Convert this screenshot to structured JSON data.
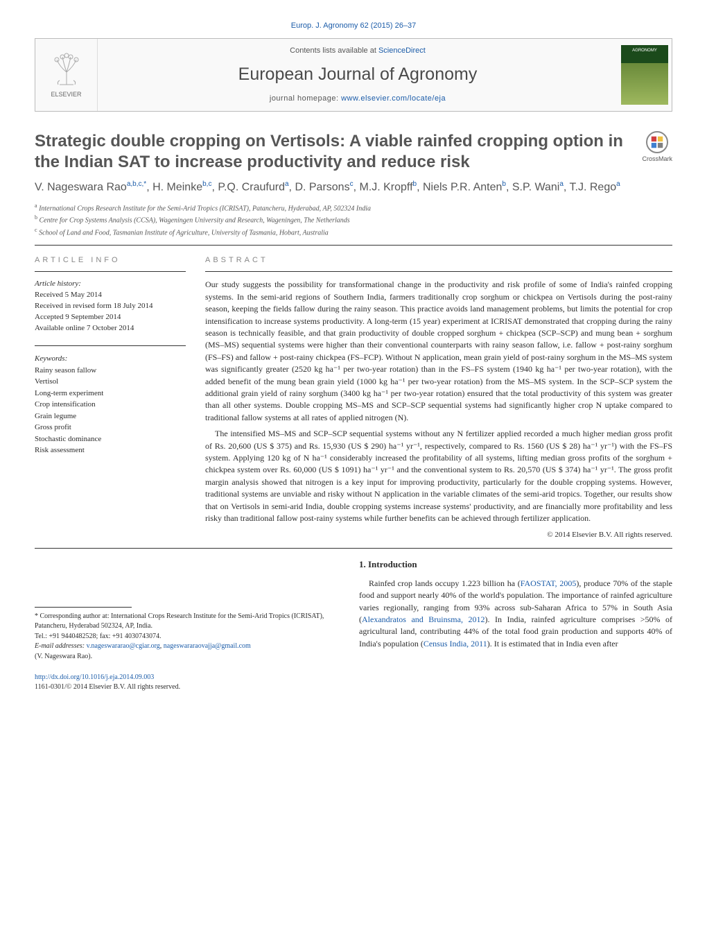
{
  "header": {
    "journal_ref_prefix": "Europ. J. Agronomy 62 (2015) 26–37",
    "contents_line": "Contents lists available at ",
    "contents_link": "ScienceDirect",
    "journal_title": "European Journal of Agronomy",
    "homepage_prefix": "journal homepage: ",
    "homepage_url": "www.elsevier.com/locate/eja",
    "elsevier_label": "ELSEVIER",
    "cover_label": "AGRONOMY"
  },
  "crossmark": {
    "label": "CrossMark"
  },
  "title": "Strategic double cropping on Vertisols: A viable rainfed cropping option in the Indian SAT to increase productivity and reduce risk",
  "authors_html": "V. Nageswara Rao",
  "authors": [
    {
      "name": "V. Nageswara Rao",
      "marks": "a,b,c,*"
    },
    {
      "name": "H. Meinke",
      "marks": "b,c"
    },
    {
      "name": "P.Q. Craufurd",
      "marks": "a"
    },
    {
      "name": "D. Parsons",
      "marks": "c"
    },
    {
      "name": "M.J. Kropff",
      "marks": "b"
    },
    {
      "name": "Niels P.R. Anten",
      "marks": "b"
    },
    {
      "name": "S.P. Wani",
      "marks": "a"
    },
    {
      "name": "T.J. Rego",
      "marks": "a"
    }
  ],
  "affiliations": [
    {
      "mark": "a",
      "text": "International Crops Research Institute for the Semi-Arid Tropics (ICRISAT), Patancheru, Hyderabad, AP, 502324 India"
    },
    {
      "mark": "b",
      "text": "Centre for Crop Systems Analysis (CCSA), Wageningen University and Research, Wageningen, The Netherlands"
    },
    {
      "mark": "c",
      "text": "School of Land and Food, Tasmanian Institute of Agriculture, University of Tasmania, Hobart, Australia"
    }
  ],
  "article_info": {
    "heading": "ARTICLE INFO",
    "history_label": "Article history:",
    "history": [
      "Received 5 May 2014",
      "Received in revised form 18 July 2014",
      "Accepted 9 September 2014",
      "Available online 7 October 2014"
    ],
    "keywords_label": "Keywords:",
    "keywords": [
      "Rainy season fallow",
      "Vertisol",
      "Long-term experiment",
      "Crop intensification",
      "Grain legume",
      "Gross profit",
      "Stochastic dominance",
      "Risk assessment"
    ]
  },
  "abstract": {
    "heading": "ABSTRACT",
    "paragraphs": [
      "Our study suggests the possibility for transformational change in the productivity and risk profile of some of India's rainfed cropping systems. In the semi-arid regions of Southern India, farmers traditionally crop sorghum or chickpea on Vertisols during the post-rainy season, keeping the fields fallow during the rainy season. This practice avoids land management problems, but limits the potential for crop intensification to increase systems productivity. A long-term (15 year) experiment at ICRISAT demonstrated that cropping during the rainy season is technically feasible, and that grain productivity of double cropped sorghum + chickpea (SCP–SCP) and mung bean + sorghum (MS–MS) sequential systems were higher than their conventional counterparts with rainy season fallow, i.e. fallow + post-rainy sorghum (FS–FS) and fallow + post-rainy chickpea (FS–FCP). Without N application, mean grain yield of post-rainy sorghum in the MS–MS system was significantly greater (2520 kg ha⁻¹ per two-year rotation) than in the FS–FS system (1940 kg ha⁻¹ per two-year rotation), with the added benefit of the mung bean grain yield (1000 kg ha⁻¹ per two-year rotation) from the MS–MS system. In the SCP–SCP system the additional grain yield of rainy sorghum (3400 kg ha⁻¹ per two-year rotation) ensured that the total productivity of this system was greater than all other systems. Double cropping MS–MS and SCP–SCP sequential systems had significantly higher crop N uptake compared to traditional fallow systems at all rates of applied nitrogen (N).",
      "The intensified MS–MS and SCP–SCP sequential systems without any N fertilizer applied recorded a much higher median gross profit of Rs. 20,600 (US $ 375) and Rs. 15,930 (US $ 290) ha⁻¹ yr⁻¹, respectively, compared to Rs. 1560 (US $ 28) ha⁻¹ yr⁻¹) with the FS–FS system. Applying 120 kg of N ha⁻¹ considerably increased the profitability of all systems, lifting median gross profits of the sorghum + chickpea system over Rs. 60,000 (US $ 1091) ha⁻¹ yr⁻¹ and the conventional system to Rs. 20,570 (US $ 374) ha⁻¹ yr⁻¹. The gross profit margin analysis showed that nitrogen is a key input for improving productivity, particularly for the double cropping systems. However, traditional systems are unviable and risky without N application in the variable climates of the semi-arid tropics. Together, our results show that on Vertisols in semi-arid India, double cropping systems increase systems' productivity, and are financially more profitability and less risky than traditional fallow post-rainy systems while further benefits can be achieved through fertilizer application."
    ],
    "copyright": "© 2014 Elsevier B.V. All rights reserved."
  },
  "intro": {
    "heading": "1.  Introduction",
    "body_pre": "Rainfed crop lands occupy 1.223 billion ha (",
    "link1": "FAOSTAT, 2005",
    "body_mid1": "), produce 70% of the staple food and support nearly 40% of the world's population. The importance of rainfed agriculture varies regionally, ranging from 93% across sub-Saharan Africa to 57% in South Asia (",
    "link2": "Alexandratos and Bruinsma, 2012",
    "body_mid2": "). In India, rainfed agriculture comprises >50% of agricultural land, contributing 44% of the total food grain production and supports 40% of India's population (",
    "link3": "Census India, 2011",
    "body_end": "). It is estimated that in India even after"
  },
  "footnotes": {
    "corresponding": "* Corresponding author at: International Crops Research Institute for the Semi-Arid Tropics (ICRISAT), Patancheru, Hyderabad 502324, AP, India.",
    "tel": "Tel.: +91 9440482528; fax: +91 4030743074.",
    "email_label": "E-mail addresses: ",
    "email1": "v.nageswararao@cgiar.org",
    "email_sep": ", ",
    "email2": "nageswararaovajja@gmail.com",
    "email_tail": "(V. Nageswara Rao).",
    "doi_url": "http://dx.doi.org/10.1016/j.eja.2014.09.003",
    "issn_line": "1161-0301/© 2014 Elsevier B.V. All rights reserved."
  },
  "colors": {
    "link": "#1a5ba8",
    "text": "#2b2b2b",
    "muted": "#565656",
    "orange": "#e6771b"
  }
}
